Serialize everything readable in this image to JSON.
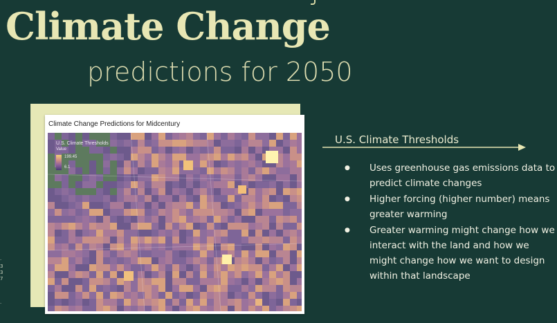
{
  "slide": {
    "title": "Climate Change",
    "subtitle": "predictions for 2050",
    "colors": {
      "background": "#173a35",
      "title": "#e8e7b4",
      "card": "#e6e8b6"
    }
  },
  "map_card": {
    "title": "Climate Change Predictions for Midcentury",
    "legend": {
      "title": "U.S. Climate Thresholds",
      "field": "Value",
      "max": "199.45",
      "min": "6.1"
    }
  },
  "info": {
    "heading": "U.S. Climate Thresholds",
    "bullets": [
      "Uses greenhouse gas emissions data to predict climate changes",
      "Higher forcing (higher number) means greater warming",
      "Greater warming might change how we interact with the land and how we might change how we want to design within that landscape"
    ]
  }
}
